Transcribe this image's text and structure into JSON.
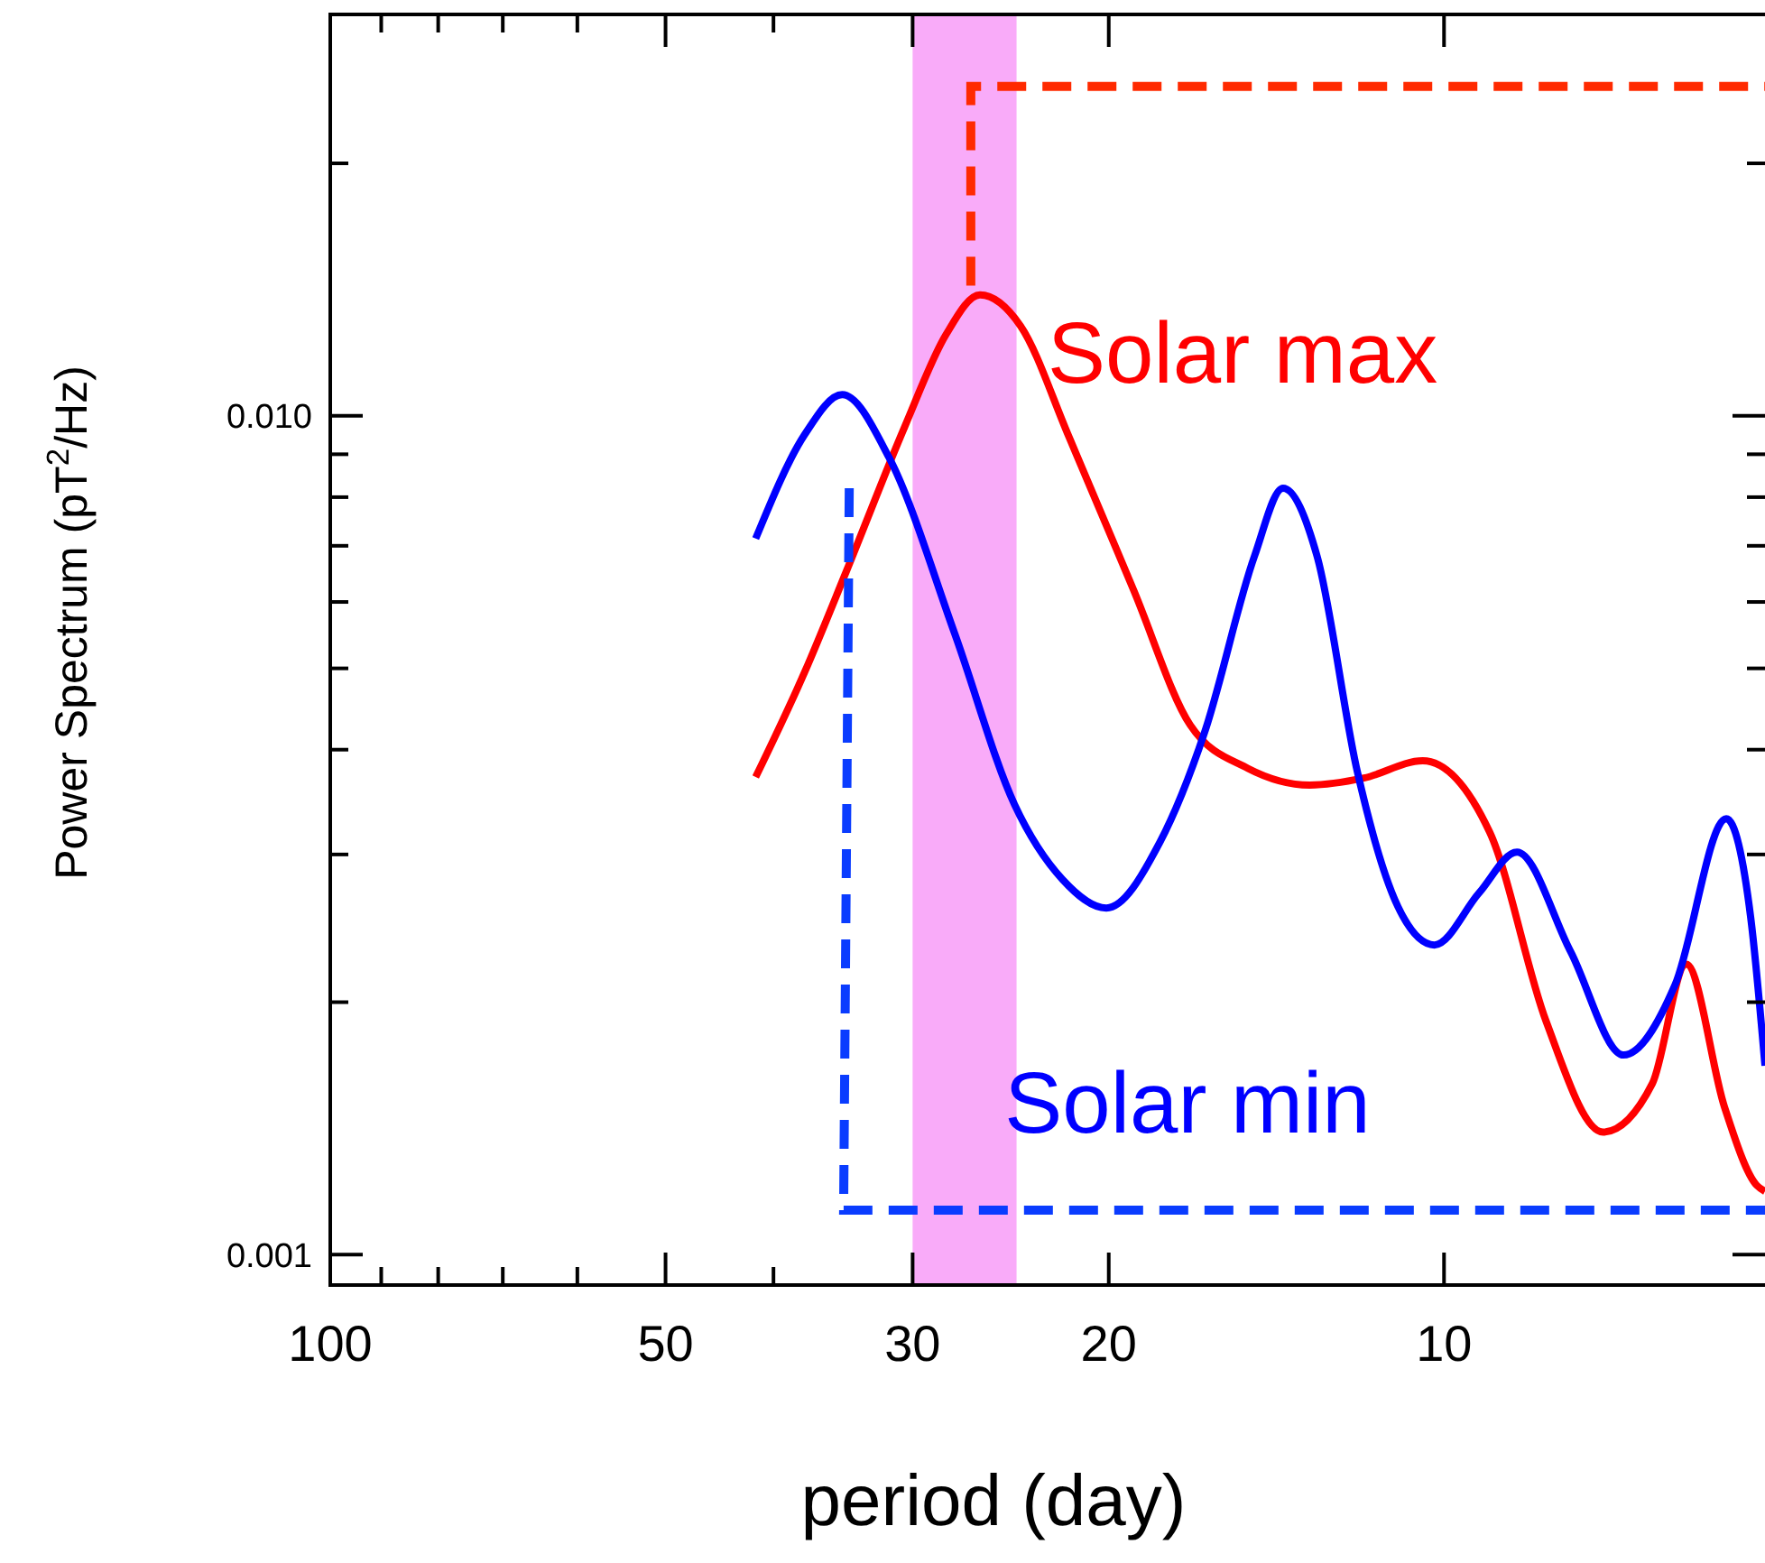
{
  "chart_data": {
    "type": "line",
    "xlabel": "period (day)",
    "ylabel": "Power Spectrum  (pT$^{2}$/Hz)",
    "log": "xy",
    "xlim": [
      100,
      5.15
    ],
    "ylim": [
      0.00092,
      0.0301
    ],
    "xticks": [
      100,
      {
        "value": 90,
        "label": null
      },
      {
        "value": 80,
        "label": null
      },
      {
        "value": 70,
        "label": null
      },
      {
        "value": 60,
        "label": null
      },
      50,
      {
        "value": 40,
        "label": null
      },
      30,
      20,
      10
    ],
    "yticks": [
      {
        "value": 0.001,
        "label": "0.001"
      },
      {
        "value": 0.002,
        "label": null
      },
      {
        "value": 0.003,
        "label": null
      },
      {
        "value": 0.004,
        "label": null
      },
      {
        "value": 0.005,
        "label": null
      },
      {
        "value": 0.006,
        "label": null
      },
      {
        "value": 0.007,
        "label": null
      },
      {
        "value": 0.008,
        "label": null
      },
      {
        "value": 0.009,
        "label": null
      },
      {
        "value": 0.01,
        "label": "0.010"
      },
      {
        "value": 0.02,
        "label": null
      }
    ],
    "grid": false,
    "marker": "none",
    "line_style": "solid",
    "bands": [
      {
        "axis": "x",
        "from": 30,
        "to": 24.2,
        "color": "#f9a6f9"
      }
    ],
    "series": [
      {
        "name": "Solar max",
        "color": "#ff0000",
        "x": [
          41.5,
          37.5,
          34.4,
          30.5,
          28,
          26.1,
          24,
          21.7,
          19,
          16.9,
          15,
          13.2,
          11.8,
          10.45,
          9.1,
          8.1,
          7.2,
          6.5,
          6.06,
          5.6,
          5.24,
          5.15
        ],
        "values": [
          0.00371,
          0.00495,
          0.00653,
          0.0097,
          0.0125,
          0.01394,
          0.0128,
          0.00942,
          0.0062,
          0.00428,
          0.0038,
          0.00363,
          0.0037,
          0.00388,
          0.00319,
          0.0019,
          0.0014,
          0.0016,
          0.00222,
          0.0015,
          0.00121,
          0.00119
        ]
      },
      {
        "name": "Solar min",
        "color": "#0000ff",
        "x": [
          41.5,
          37.5,
          34.7,
          31.5,
          27.5,
          24.3,
          22,
          20.1,
          18,
          16.4,
          14.8,
          13.95,
          13,
          11.96,
          11,
          10.2,
          9.3,
          8.6,
          7.7,
          6.9,
          6.2,
          5.58,
          5.3,
          5.15
        ],
        "values": [
          0.00714,
          0.0095,
          0.0106,
          0.00892,
          0.0055,
          0.00344,
          0.0028,
          0.00259,
          0.0031,
          0.0042,
          0.0068,
          0.0082,
          0.0068,
          0.00376,
          0.0026,
          0.00234,
          0.0027,
          0.00302,
          0.0023,
          0.00173,
          0.0021,
          0.00331,
          0.0025,
          0.00168
        ]
      }
    ]
  }
}
